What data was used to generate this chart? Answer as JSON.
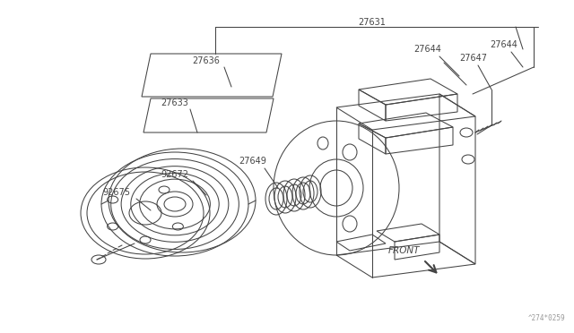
{
  "bg_color": "#ffffff",
  "line_color": "#444444",
  "text_color": "#444444",
  "fig_width": 6.4,
  "fig_height": 3.72,
  "watermark": "^274*0259",
  "label_fontsize": 7.0,
  "front_fontsize": 7.5
}
